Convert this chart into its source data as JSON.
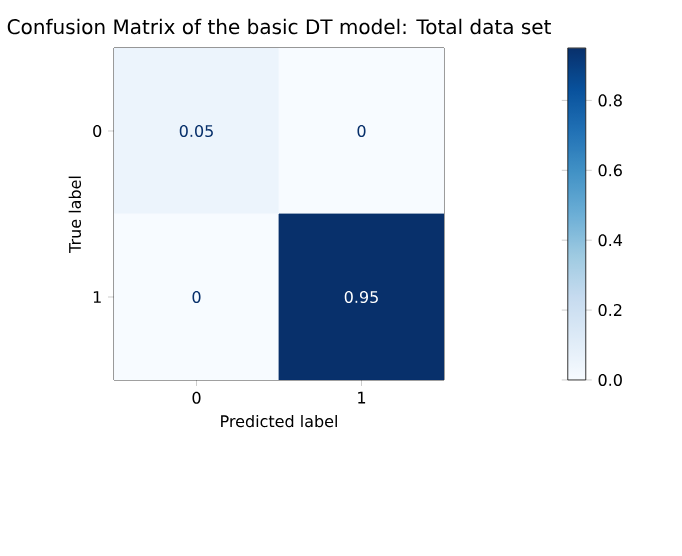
{
  "chart_data": {
    "type": "heatmap",
    "title": "Confusion Matrix of the basic DT model: Total data set",
    "xlabel": "Predicted label",
    "ylabel": "True label",
    "categories": [
      "0",
      "1"
    ],
    "y_categories": [
      "0",
      "1"
    ],
    "cells": [
      [
        0.05,
        0
      ],
      [
        0,
        0.95
      ]
    ],
    "data_labels": true,
    "clim": [
      0,
      0.95
    ],
    "cticks": [
      {
        "value": 0,
        "label": "0.0"
      },
      {
        "value": 0.2,
        "label": "0.2"
      },
      {
        "value": 0.4,
        "label": "0.4"
      },
      {
        "value": 0.6,
        "label": "0.6"
      },
      {
        "value": 0.8,
        "label": "0.8"
      }
    ]
  }
}
